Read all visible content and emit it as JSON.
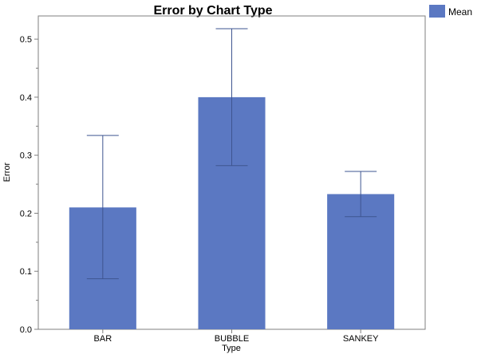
{
  "chart_data": {
    "type": "bar",
    "title": "Error by Chart Type",
    "xlabel": "Type",
    "ylabel": "Error",
    "categories": [
      "BAR",
      "BUBBLE",
      "SANKEY"
    ],
    "series": [
      {
        "name": "Mean",
        "values": [
          0.21,
          0.4,
          0.233
        ],
        "error_low": [
          0.087,
          0.282,
          0.194
        ],
        "error_high": [
          0.334,
          0.518,
          0.272
        ]
      }
    ],
    "ylim": [
      0,
      0.54
    ],
    "yticks": [
      "0.0",
      "0.1",
      "0.2",
      "0.3",
      "0.4",
      "0.5"
    ],
    "ytick_values": [
      0,
      0.1,
      0.2,
      0.3,
      0.4,
      0.5
    ],
    "grid": false,
    "legend_position": "top-right",
    "colors": {
      "bar": "#5b78c2",
      "error_bar": "#3e5590",
      "axis": "#7f7f7f"
    }
  }
}
